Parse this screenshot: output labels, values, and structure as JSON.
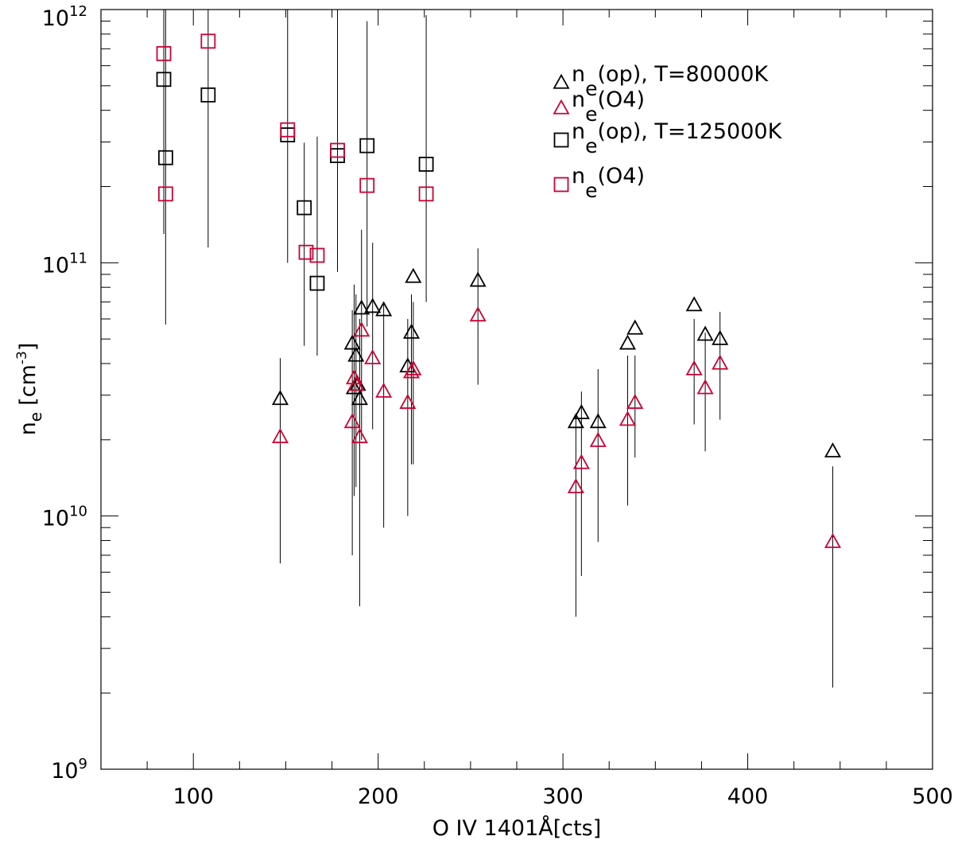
{
  "chart_data": {
    "type": "scatter",
    "xlabel": {
      "main": "O IV 1401Å[cts]"
    },
    "ylabel": {
      "main": "n",
      "sub": "e",
      "unit": "[cm",
      "exp": "-3",
      "close": "]"
    },
    "xlim": [
      50,
      500
    ],
    "ylim": [
      1000000000.0,
      1000000000000.0
    ],
    "yscale": "log",
    "x_ticks": [
      {
        "value": 100,
        "label": "100"
      },
      {
        "value": 200,
        "label": "200"
      },
      {
        "value": 300,
        "label": "300"
      },
      {
        "value": 400,
        "label": "400"
      },
      {
        "value": 500,
        "label": "500"
      }
    ],
    "y_ticks": [
      {
        "value": 1000000000.0,
        "base": "10",
        "exp": "9"
      },
      {
        "value": 10000000000.0,
        "base": "10",
        "exp": "10"
      },
      {
        "value": 100000000000.0,
        "base": "10",
        "exp": "11"
      },
      {
        "value": 1000000000000.0,
        "base": "10",
        "exp": "12"
      }
    ],
    "colors": {
      "black": "#000000",
      "red": "#cc0033",
      "errorbar": "#000000"
    },
    "legend": {
      "position": "top-right",
      "entries": [
        {
          "marker": "triangle",
          "color": "#000000",
          "label_main": "n",
          "label_sub": "e",
          "label_rest": "(op), T=80000K"
        },
        {
          "marker": "triangle",
          "color": "#cc0033",
          "label_main": "n",
          "label_sub": "e",
          "label_rest": "(O4)"
        },
        {
          "marker": "square",
          "color": "#000000",
          "label_main": "n",
          "label_sub": "e",
          "label_rest": "(op), T=125000K"
        },
        {
          "marker": "square",
          "color": "#cc0033",
          "label_main": "n",
          "label_sub": "e",
          "label_rest": "(O4)"
        }
      ]
    },
    "error_bars": [
      {
        "x": 84,
        "lo": 130000000000.0,
        "hi": 1000000000000.0
      },
      {
        "x": 85,
        "lo": 57000000000.0,
        "hi": 1000000000000.0
      },
      {
        "x": 108,
        "lo": 115000000000.0,
        "hi": 1000000000000.0
      },
      {
        "x": 147,
        "lo": 6500000000.0,
        "hi": 42000000000.0
      },
      {
        "x": 151,
        "lo": 100000000000.0,
        "hi": 1000000000000.0
      },
      {
        "x": 160,
        "lo": 47000000000.0,
        "hi": 298000000000.0
      },
      {
        "x": 167,
        "lo": 43000000000.0,
        "hi": 315000000000.0
      },
      {
        "x": 178,
        "lo": 92000000000.0,
        "hi": 1000000000000.0
      },
      {
        "x": 186,
        "lo": 7000000000.0,
        "hi": 65000000000.0
      },
      {
        "x": 187,
        "lo": 12000000000.0,
        "hi": 82000000000.0
      },
      {
        "x": 188,
        "lo": 13000000000.0,
        "hi": 75000000000.0
      },
      {
        "x": 190,
        "lo": 4400000000.0,
        "hi": 60000000000.0
      },
      {
        "x": 191,
        "lo": 20000000000.0,
        "hi": 135000000000.0
      },
      {
        "x": 194,
        "lo": 56000000000.0,
        "hi": 900000000000.0
      },
      {
        "x": 197,
        "lo": 22000000000.0,
        "hi": 120000000000.0
      },
      {
        "x": 203,
        "lo": 9000000000.0,
        "hi": 70000000000.0
      },
      {
        "x": 216,
        "lo": 10000000000.0,
        "hi": 60000000000.0
      },
      {
        "x": 218,
        "lo": 16000000000.0,
        "hi": 75000000000.0
      },
      {
        "x": 219,
        "lo": 16000000000.0,
        "hi": 70000000000.0
      },
      {
        "x": 226,
        "lo": 70000000000.0,
        "hi": 950000000000.0
      },
      {
        "x": 254,
        "lo": 33000000000.0,
        "hi": 114000000000.0
      },
      {
        "x": 307,
        "lo": 4000000000.0,
        "hi": 25000000000.0
      },
      {
        "x": 310,
        "lo": 5800000000.0,
        "hi": 31000000000.0
      },
      {
        "x": 319,
        "lo": 7900000000.0,
        "hi": 38000000000.0
      },
      {
        "x": 335,
        "lo": 11000000000.0,
        "hi": 43000000000.0
      },
      {
        "x": 339,
        "lo": 17000000000.0,
        "hi": 43000000000.0
      },
      {
        "x": 371,
        "lo": 23000000000.0,
        "hi": 60000000000.0
      },
      {
        "x": 377,
        "lo": 18000000000.0,
        "hi": 53000000000.0
      },
      {
        "x": 385,
        "lo": 24000000000.0,
        "hi": 64000000000.0
      },
      {
        "x": 446,
        "lo": 2100000000.0,
        "hi": 15700000000.0
      }
    ],
    "series": [
      {
        "marker": "square",
        "color": "#000000",
        "x": [
          84,
          85,
          108,
          151,
          160,
          167,
          178,
          194,
          226
        ],
        "y": [
          530000000000.0,
          260000000000.0,
          460000000000.0,
          320000000000.0,
          165000000000.0,
          83000000000.0,
          265000000000.0,
          290000000000.0,
          245000000000.0
        ]
      },
      {
        "marker": "square",
        "color": "#cc0033",
        "x": [
          84,
          85,
          108,
          151,
          161,
          167,
          178,
          194,
          226
        ],
        "y": [
          670000000000.0,
          187000000000.0,
          750000000000.0,
          335000000000.0,
          110000000000.0,
          107000000000.0,
          278000000000.0,
          202000000000.0,
          187000000000.0
        ]
      },
      {
        "marker": "triangle",
        "color": "#000000",
        "x": [
          147,
          186,
          187,
          188,
          189,
          190,
          191,
          197,
          203,
          216,
          218,
          219,
          254,
          307,
          310,
          319,
          335,
          339,
          371,
          377,
          385,
          446
        ],
        "y": [
          29000000000.0,
          48000000000.0,
          32000000000.0,
          43000000000.0,
          33000000000.0,
          29000000000.0,
          66000000000.0,
          67000000000.0,
          65000000000.0,
          39000000000.0,
          53000000000.0,
          88000000000.0,
          85000000000.0,
          23500000000.0,
          25500000000.0,
          23500000000.0,
          48000000000.0,
          55000000000.0,
          68000000000.0,
          52000000000.0,
          50000000000.0,
          18000000000.0
        ]
      },
      {
        "marker": "triangle",
        "color": "#cc0033",
        "x": [
          147,
          186,
          187,
          188,
          190,
          191,
          197,
          203,
          216,
          218,
          219,
          254,
          307,
          310,
          319,
          335,
          339,
          371,
          377,
          385,
          446
        ],
        "y": [
          20500000000.0,
          23500000000.0,
          35000000000.0,
          33000000000.0,
          20500000000.0,
          54000000000.0,
          42000000000.0,
          31000000000.0,
          28000000000.0,
          37000000000.0,
          38000000000.0,
          62000000000.0,
          13000000000.0,
          16200000000.0,
          19800000000.0,
          24000000000.0,
          28000000000.0,
          38000000000.0,
          32000000000.0,
          40000000000.0,
          7900000000.0
        ]
      }
    ]
  }
}
